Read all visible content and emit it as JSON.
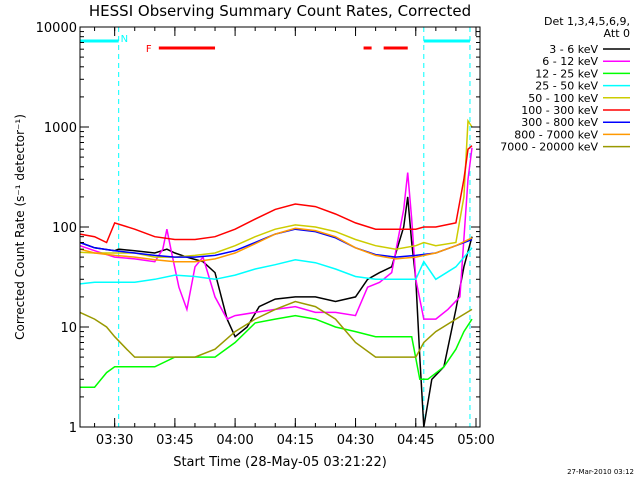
{
  "chart_data": {
    "type": "line",
    "title": "HESSI Observing Summary Count Rates, Corrected",
    "xlabel": "Start Time (28-May-05 03:21:22)",
    "ylabel": "Corrected Count Rate (s⁻¹ detector⁻¹)",
    "y_scale": "log",
    "ylim": [
      1,
      10000
    ],
    "xlim": [
      "03:21:22",
      "05:01:00"
    ],
    "x_ticks": [
      "03:30",
      "03:45",
      "04:00",
      "04:15",
      "04:30",
      "04:45",
      "05:00"
    ],
    "y_ticks": [
      {
        "value": 1,
        "label": "1"
      },
      {
        "value": 10,
        "label": "10"
      },
      {
        "value": 100,
        "label": "100"
      },
      {
        "value": 1000,
        "label": "1000"
      },
      {
        "value": 10000,
        "label": "10000"
      }
    ],
    "legend_header": [
      "Det 1,3,4,5,6,9,",
      "Att 0"
    ],
    "legend_position": "right",
    "flag_labels": {
      "night": "N",
      "flare": "F"
    },
    "night_intervals": [
      [
        "03:21:22",
        "03:31:00"
      ],
      [
        "04:47:00",
        "04:58:30"
      ]
    ],
    "saa_lines": [
      "03:31:00",
      "04:47:00",
      "04:58:30"
    ],
    "flare_intervals": [
      [
        "03:41:00",
        "03:55:00"
      ],
      [
        "04:32:00",
        "04:34:00"
      ],
      [
        "04:37:00",
        "04:43:00"
      ]
    ],
    "series": [
      {
        "name": "3 - 6 keV",
        "color": "#000000",
        "points": [
          [
            "03:21:22",
            70
          ],
          [
            "03:25",
            62
          ],
          [
            "03:30",
            58
          ],
          [
            "03:31",
            60
          ],
          [
            "03:35",
            58
          ],
          [
            "03:40",
            55
          ],
          [
            "03:43",
            60
          ],
          [
            "03:45",
            55
          ],
          [
            "03:48",
            50
          ],
          [
            "03:52",
            45
          ],
          [
            "03:55",
            35
          ],
          [
            "03:58",
            12
          ],
          [
            "04:00",
            8
          ],
          [
            "04:03",
            10
          ],
          [
            "04:06",
            16
          ],
          [
            "04:10",
            19
          ],
          [
            "04:15",
            20
          ],
          [
            "04:20",
            20
          ],
          [
            "04:25",
            18
          ],
          [
            "04:30",
            20
          ],
          [
            "04:33",
            30
          ],
          [
            "04:36",
            35
          ],
          [
            "04:39",
            40
          ],
          [
            "04:42",
            100
          ],
          [
            "04:43",
            200
          ],
          [
            "04:44",
            70
          ],
          [
            "04:45",
            30
          ],
          [
            "04:46",
            5
          ],
          [
            "04:47",
            1
          ],
          [
            "04:49",
            3
          ],
          [
            "04:52",
            4
          ],
          [
            "04:55",
            15
          ],
          [
            "04:57",
            40
          ],
          [
            "04:59",
            80
          ]
        ]
      },
      {
        "name": "6 - 12 keV",
        "color": "#ff00ff",
        "points": [
          [
            "03:21:22",
            65
          ],
          [
            "03:25",
            58
          ],
          [
            "03:30",
            50
          ],
          [
            "03:35",
            48
          ],
          [
            "03:40",
            45
          ],
          [
            "03:42",
            60
          ],
          [
            "03:43",
            95
          ],
          [
            "03:44",
            60
          ],
          [
            "03:46",
            25
          ],
          [
            "03:48",
            15
          ],
          [
            "03:50",
            40
          ],
          [
            "03:52",
            50
          ],
          [
            "03:55",
            20
          ],
          [
            "03:58",
            12
          ],
          [
            "04:00",
            13
          ],
          [
            "04:05",
            14
          ],
          [
            "04:10",
            15
          ],
          [
            "04:15",
            16
          ],
          [
            "04:20",
            14
          ],
          [
            "04:25",
            14
          ],
          [
            "04:30",
            13
          ],
          [
            "04:33",
            25
          ],
          [
            "04:36",
            28
          ],
          [
            "04:39",
            35
          ],
          [
            "04:42",
            150
          ],
          [
            "04:43",
            350
          ],
          [
            "04:44",
            120
          ],
          [
            "04:45",
            30
          ],
          [
            "04:47",
            12
          ],
          [
            "04:50",
            12
          ],
          [
            "04:53",
            15
          ],
          [
            "04:56",
            20
          ],
          [
            "04:58",
            300
          ],
          [
            "04:59",
            620
          ]
        ]
      },
      {
        "name": "12 - 25 keV",
        "color": "#00ff00",
        "points": [
          [
            "03:21:22",
            2.5
          ],
          [
            "03:25",
            2.5
          ],
          [
            "03:28",
            3.5
          ],
          [
            "03:30",
            4
          ],
          [
            "03:35",
            4
          ],
          [
            "03:40",
            4
          ],
          [
            "03:45",
            5
          ],
          [
            "03:50",
            5
          ],
          [
            "03:55",
            5
          ],
          [
            "04:00",
            7
          ],
          [
            "04:05",
            11
          ],
          [
            "04:10",
            12
          ],
          [
            "04:15",
            13
          ],
          [
            "04:20",
            12
          ],
          [
            "04:25",
            10
          ],
          [
            "04:30",
            9
          ],
          [
            "04:35",
            8
          ],
          [
            "04:40",
            8
          ],
          [
            "04:44",
            8
          ],
          [
            "04:46",
            3
          ],
          [
            "04:48",
            3
          ],
          [
            "04:52",
            4
          ],
          [
            "04:55",
            6
          ],
          [
            "04:57",
            9
          ],
          [
            "04:59",
            12
          ]
        ]
      },
      {
        "name": "25 - 50 keV",
        "color": "#00ffff",
        "points": [
          [
            "03:21:22",
            27
          ],
          [
            "03:25",
            28
          ],
          [
            "03:30",
            28
          ],
          [
            "03:35",
            28
          ],
          [
            "03:40",
            30
          ],
          [
            "03:45",
            33
          ],
          [
            "03:50",
            32
          ],
          [
            "03:55",
            30
          ],
          [
            "04:00",
            33
          ],
          [
            "04:05",
            38
          ],
          [
            "04:10",
            42
          ],
          [
            "04:15",
            47
          ],
          [
            "04:20",
            44
          ],
          [
            "04:25",
            38
          ],
          [
            "04:30",
            32
          ],
          [
            "04:35",
            30
          ],
          [
            "04:40",
            30
          ],
          [
            "04:45",
            30
          ],
          [
            "04:47",
            45
          ],
          [
            "04:50",
            30
          ],
          [
            "04:55",
            40
          ],
          [
            "04:59",
            62
          ]
        ]
      },
      {
        "name": "50 - 100 keV",
        "color": "#cccc00",
        "points": [
          [
            "03:21:22",
            56
          ],
          [
            "03:25",
            55
          ],
          [
            "03:30",
            55
          ],
          [
            "03:35",
            55
          ],
          [
            "03:40",
            50
          ],
          [
            "03:45",
            50
          ],
          [
            "03:50",
            52
          ],
          [
            "03:55",
            55
          ],
          [
            "04:00",
            65
          ],
          [
            "04:05",
            80
          ],
          [
            "04:10",
            95
          ],
          [
            "04:15",
            105
          ],
          [
            "04:20",
            100
          ],
          [
            "04:25",
            90
          ],
          [
            "04:30",
            75
          ],
          [
            "04:35",
            65
          ],
          [
            "04:40",
            60
          ],
          [
            "04:45",
            65
          ],
          [
            "04:47",
            70
          ],
          [
            "04:50",
            65
          ],
          [
            "04:55",
            70
          ],
          [
            "04:57",
            200
          ],
          [
            "04:58",
            1150
          ],
          [
            "04:59",
            1000
          ]
        ]
      },
      {
        "name": "100 - 300 keV",
        "color": "#ff0000",
        "points": [
          [
            "03:21:22",
            85
          ],
          [
            "03:25",
            80
          ],
          [
            "03:28",
            70
          ],
          [
            "03:30",
            110
          ],
          [
            "03:35",
            95
          ],
          [
            "03:40",
            80
          ],
          [
            "03:45",
            75
          ],
          [
            "03:50",
            75
          ],
          [
            "03:55",
            80
          ],
          [
            "04:00",
            95
          ],
          [
            "04:05",
            120
          ],
          [
            "04:10",
            150
          ],
          [
            "04:15",
            170
          ],
          [
            "04:20",
            160
          ],
          [
            "04:25",
            135
          ],
          [
            "04:30",
            110
          ],
          [
            "04:35",
            95
          ],
          [
            "04:40",
            95
          ],
          [
            "04:45",
            95
          ],
          [
            "04:47",
            100
          ],
          [
            "04:50",
            100
          ],
          [
            "04:55",
            110
          ],
          [
            "04:57",
            300
          ],
          [
            "04:58",
            600
          ],
          [
            "04:59",
            650
          ]
        ]
      },
      {
        "name": "300 - 800 keV",
        "color": "#0000ff",
        "points": [
          [
            "03:21:22",
            70
          ],
          [
            "03:25",
            62
          ],
          [
            "03:30",
            58
          ],
          [
            "03:35",
            55
          ],
          [
            "03:40",
            52
          ],
          [
            "03:45",
            50
          ],
          [
            "03:50",
            50
          ],
          [
            "03:55",
            52
          ],
          [
            "04:00",
            58
          ],
          [
            "04:05",
            70
          ],
          [
            "04:10",
            85
          ],
          [
            "04:15",
            95
          ],
          [
            "04:20",
            90
          ],
          [
            "04:25",
            78
          ],
          [
            "04:30",
            62
          ],
          [
            "04:35",
            53
          ],
          [
            "04:40",
            50
          ],
          [
            "04:45",
            52
          ],
          [
            "04:50",
            55
          ],
          [
            "04:55",
            65
          ],
          [
            "04:59",
            75
          ]
        ]
      },
      {
        "name": "800 - 7000 keV",
        "color": "#ff9900",
        "points": [
          [
            "03:21:22",
            60
          ],
          [
            "03:25",
            55
          ],
          [
            "03:30",
            52
          ],
          [
            "03:35",
            50
          ],
          [
            "03:40",
            47
          ],
          [
            "03:45",
            45
          ],
          [
            "03:50",
            45
          ],
          [
            "03:55",
            48
          ],
          [
            "04:00",
            55
          ],
          [
            "04:05",
            68
          ],
          [
            "04:10",
            85
          ],
          [
            "04:15",
            97
          ],
          [
            "04:20",
            92
          ],
          [
            "04:25",
            80
          ],
          [
            "04:30",
            62
          ],
          [
            "04:35",
            52
          ],
          [
            "04:40",
            48
          ],
          [
            "04:45",
            50
          ],
          [
            "04:50",
            55
          ],
          [
            "04:55",
            65
          ],
          [
            "04:59",
            78
          ]
        ]
      },
      {
        "name": "7000 - 20000 keV",
        "color": "#999900",
        "points": [
          [
            "03:21:22",
            14
          ],
          [
            "03:25",
            12
          ],
          [
            "03:28",
            10
          ],
          [
            "03:30",
            8
          ],
          [
            "03:33",
            6
          ],
          [
            "03:35",
            5
          ],
          [
            "03:40",
            5
          ],
          [
            "03:45",
            5
          ],
          [
            "03:50",
            5
          ],
          [
            "03:55",
            6
          ],
          [
            "04:00",
            9
          ],
          [
            "04:05",
            12
          ],
          [
            "04:10",
            15
          ],
          [
            "04:15",
            18
          ],
          [
            "04:20",
            16
          ],
          [
            "04:25",
            12
          ],
          [
            "04:30",
            7
          ],
          [
            "04:35",
            5
          ],
          [
            "04:40",
            5
          ],
          [
            "04:45",
            5
          ],
          [
            "04:47",
            7
          ],
          [
            "04:50",
            9
          ],
          [
            "04:55",
            12
          ],
          [
            "04:59",
            15
          ]
        ]
      }
    ]
  },
  "footer_timestamp": "27-Mar-2010 03:12"
}
